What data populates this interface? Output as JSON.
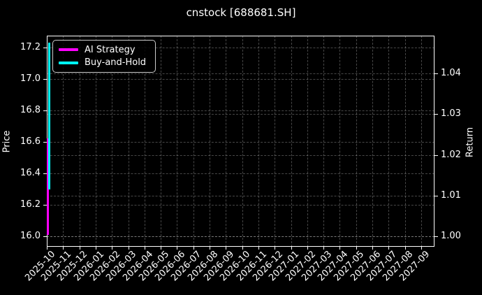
{
  "title": "cnstock [688681.SH]",
  "chart_data": {
    "type": "line",
    "title": "cnstock [688681.SH]",
    "background_color": "#000000",
    "text_color": "#ffffff",
    "grid": true,
    "grid_style": "dashed",
    "legend_position": "upper left",
    "x_tick_labels": [
      "2025-10",
      "2025-11",
      "2025-12",
      "2026-01",
      "2026-02",
      "2026-03",
      "2026-04",
      "2026-05",
      "2026-06",
      "2026-07",
      "2026-08",
      "2026-09",
      "2026-10",
      "2026-11",
      "2026-12",
      "2027-01",
      "2027-02",
      "2027-03",
      "2027-04",
      "2027-05",
      "2027-06",
      "2027-07",
      "2027-08",
      "2027-09"
    ],
    "left_axis": {
      "label": "Price",
      "ticks": [
        16.0,
        16.2,
        16.4,
        16.6,
        16.8,
        17.0,
        17.2
      ],
      "lim": [
        15.93,
        17.28
      ]
    },
    "right_axis": {
      "label": "Return",
      "ticks": [
        1.0,
        1.01,
        1.02,
        1.03,
        1.04
      ],
      "lim": [
        0.9974,
        1.0493
      ]
    },
    "series": [
      {
        "name": "AI Strategy",
        "color": "#ff00ff",
        "axis": "right",
        "shape": "vertical-segment",
        "x": "2025-10",
        "y_start": 1.0003,
        "y_end": 1.024
      },
      {
        "name": "Buy-and-Hold",
        "color": "#00ffff",
        "axis": "left",
        "shape": "vertical-segment",
        "x": "2025-10",
        "y_start": 16.3,
        "y_end": 17.23
      }
    ],
    "note": "All plotted data sits at the very start of the x-range (2025-10), so both series appear as vertical segments at the left edge of the plot."
  }
}
